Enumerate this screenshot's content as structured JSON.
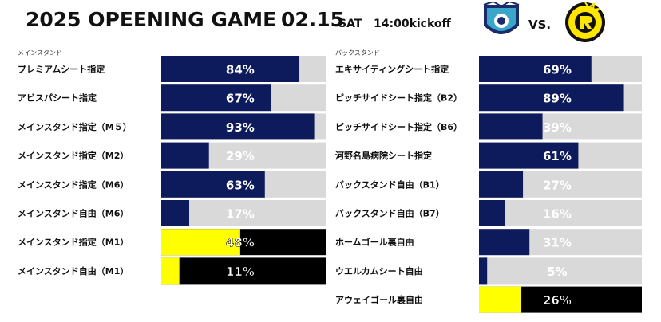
{
  "header": {
    "title": "2025 OPEENING GAME",
    "date": "02.15",
    "day": "SAT",
    "kickoff": "14:00kickoff",
    "vs": "VS.",
    "home_crest": "avispa-fukuoka-crest",
    "away_crest": "kashiwa-reysol-crest"
  },
  "colors": {
    "home": "#0d1b5c",
    "away": "#000000",
    "away_accent": "#ffff00",
    "remaining": "#d9d9d9",
    "text_on_dark": "#ffffff",
    "text_on_light": "#ffffff"
  },
  "chart_data": [
    {
      "type": "bar",
      "section": "メインスタンド",
      "orientation": "horizontal",
      "unit": "%",
      "xlim": [
        0,
        100
      ],
      "rows": [
        {
          "label": "プレミアムシート指定",
          "value": 84,
          "team": "home"
        },
        {
          "label": "アビスパシート指定",
          "value": 67,
          "team": "home"
        },
        {
          "label": "メインスタンド指定（M５）",
          "value": 93,
          "team": "home"
        },
        {
          "label": "メインスタンド指定（M2）",
          "value": 29,
          "team": "home"
        },
        {
          "label": "メインスタンド指定（M6）",
          "value": 63,
          "team": "home"
        },
        {
          "label": "メインスタンド自由（M6）",
          "value": 17,
          "team": "home"
        },
        {
          "label": "メインスタンド指定（M1）",
          "value": 48,
          "team": "away"
        },
        {
          "label": "メインスタンド自由（M1）",
          "value": 11,
          "team": "away"
        }
      ]
    },
    {
      "type": "bar",
      "section": "バックスタンド",
      "orientation": "horizontal",
      "unit": "%",
      "xlim": [
        0,
        100
      ],
      "rows": [
        {
          "label": "エキサイティングシート指定",
          "value": 69,
          "team": "home"
        },
        {
          "label": "ピッチサイドシート指定（B2）",
          "value": 89,
          "team": "home"
        },
        {
          "label": "ピッチサイドシート指定（B6）",
          "value": 39,
          "team": "home"
        },
        {
          "label": "河野名島病院シート指定",
          "value": 61,
          "team": "home"
        },
        {
          "label": "バックスタンド自由（B1）",
          "value": 27,
          "team": "home"
        },
        {
          "label": "バックスタンド自由（B7）",
          "value": 16,
          "team": "home"
        },
        {
          "label": "ホームゴール裏自由",
          "value": 31,
          "team": "home"
        },
        {
          "label": "ウエルカムシート自由",
          "value": 5,
          "team": "home"
        },
        {
          "label": "アウェイゴール裏自由",
          "value": 26,
          "team": "away"
        }
      ]
    }
  ]
}
